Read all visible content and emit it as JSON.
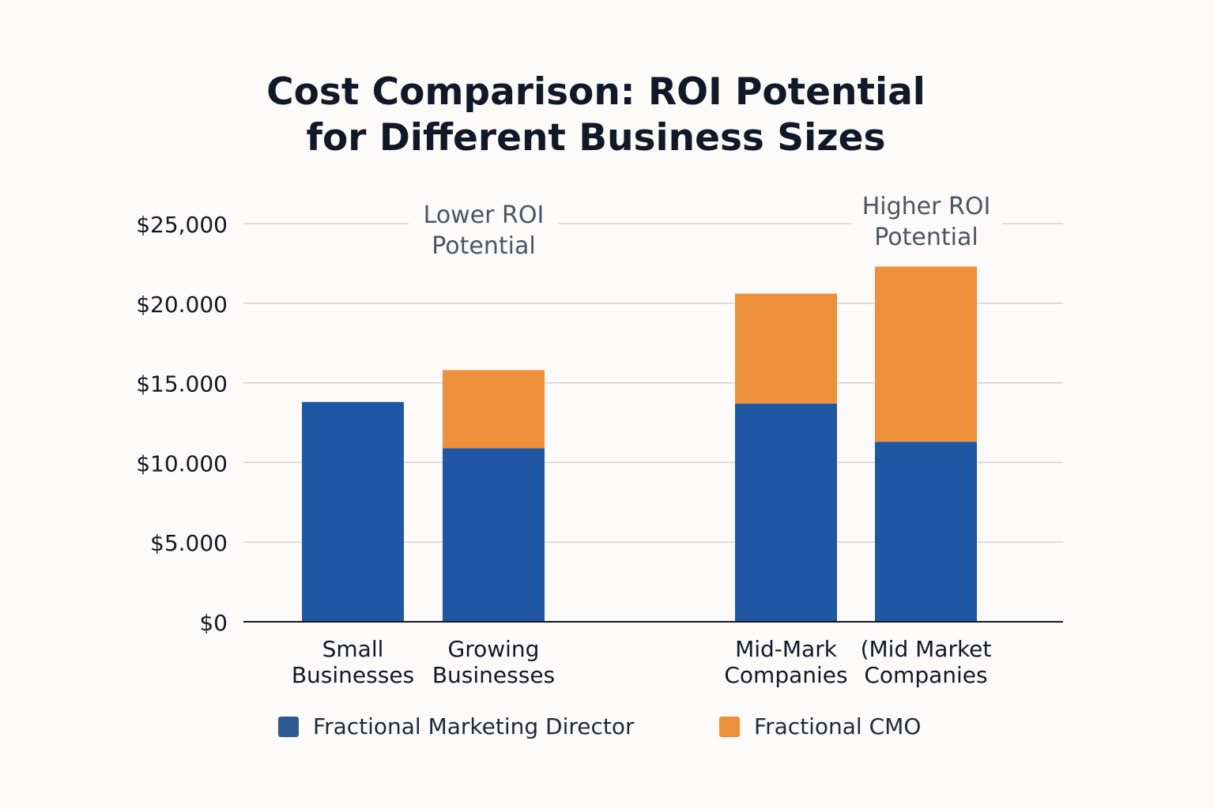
{
  "title_line1": "Cost Comparison: ROI Potential",
  "title_line2": "for Different Business Sizes",
  "chart_data": {
    "type": "bar",
    "stacked": true,
    "title": "Cost Comparison: ROI Potential for Different Business Sizes",
    "categories": [
      [
        "Small",
        "Businesses"
      ],
      [
        "Growing",
        "Businesses"
      ],
      [
        "Mid-Mark",
        "Companies"
      ],
      [
        "(Mid Market",
        "Companies"
      ]
    ],
    "series": [
      {
        "name": "Fractional Marketing Director",
        "color": "#1f57a4",
        "values": [
          13800,
          10900,
          13700,
          11300
        ]
      },
      {
        "name": "Fractional CMO",
        "color": "#ee8f3a",
        "values": [
          0,
          4900,
          6900,
          11000
        ]
      }
    ],
    "ylim": [
      0,
      25000
    ],
    "yticks": [
      0,
      5000,
      10000,
      15000,
      20000,
      25000
    ],
    "ytick_labels": [
      "$0",
      "$5.000",
      "$10.000",
      "$15.000",
      "$20.000",
      "$25,000"
    ],
    "grid": true,
    "legend_placement": "bottom",
    "annotations": [
      {
        "lines": [
          "Lower ROI",
          "Potential"
        ]
      },
      {
        "lines": [
          "Higher ROI",
          "Potential"
        ]
      }
    ]
  },
  "legend": [
    {
      "label": "Fractional Marketing Director",
      "color": "#2e5a94"
    },
    {
      "label": "Fractional CMO",
      "color": "#ee8f3a"
    }
  ]
}
